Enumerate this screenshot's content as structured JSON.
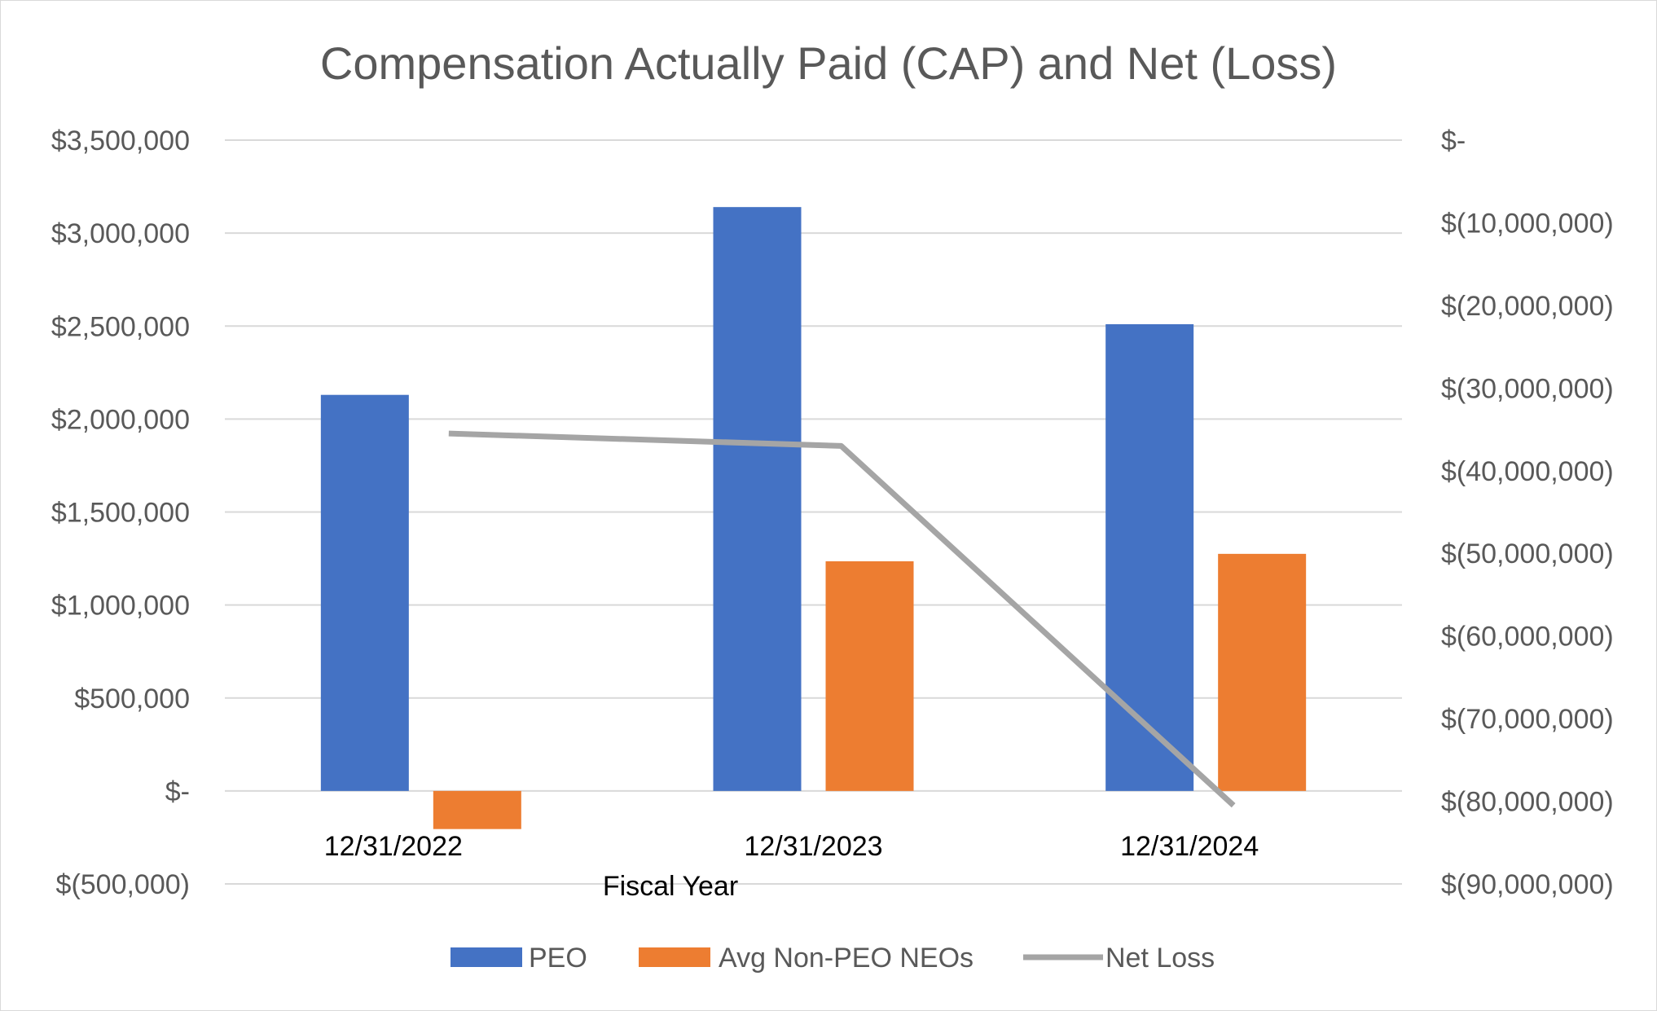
{
  "chart_data": {
    "type": "bar",
    "title": "Compensation Actually Paid (CAP) and Net (Loss)",
    "xlabel": "Fiscal  Year",
    "categories": [
      "12/31/2022",
      "12/31/2023",
      "12/31/2024"
    ],
    "series": [
      {
        "name": "PEO",
        "type": "bar",
        "axis": "left",
        "color": "#4472c4",
        "values": [
          2130000,
          3140000,
          2510000
        ]
      },
      {
        "name": "Avg Non-PEO NEOs",
        "type": "bar",
        "axis": "left",
        "color": "#ed7d31",
        "values": [
          -205000,
          1235000,
          1275000
        ]
      },
      {
        "name": "Net Loss",
        "type": "line",
        "axis": "right",
        "color": "#a5a5a5",
        "values": [
          -35500000,
          -37000000,
          -80500000
        ]
      }
    ],
    "y_left": {
      "ylim": [
        -500000,
        3500000
      ],
      "ticks": [
        3500000,
        3000000,
        2500000,
        2000000,
        1500000,
        1000000,
        500000,
        0,
        -500000
      ],
      "tick_labels": [
        "$3,500,000",
        "$3,000,000",
        "$2,500,000",
        "$2,000,000",
        "$1,500,000",
        "$1,000,000",
        "$500,000",
        "$-",
        "$(500,000)"
      ]
    },
    "y_right": {
      "ylim": [
        -90000000,
        0
      ],
      "ticks": [
        0,
        -10000000,
        -20000000,
        -30000000,
        -40000000,
        -50000000,
        -60000000,
        -70000000,
        -80000000,
        -90000000
      ],
      "tick_labels": [
        "$-",
        "$(10,000,000)",
        "$(20,000,000)",
        "$(30,000,000)",
        "$(40,000,000)",
        "$(50,000,000)",
        "$(60,000,000)",
        "$(70,000,000)",
        "$(80,000,000)",
        "$(90,000,000)"
      ]
    },
    "grid": true,
    "legend_position": "bottom",
    "legend": [
      "PEO",
      "Avg Non-PEO NEOs",
      "Net Loss"
    ]
  }
}
